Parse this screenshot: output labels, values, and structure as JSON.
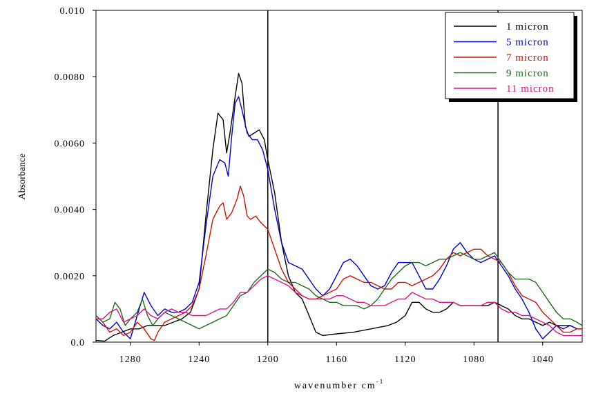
{
  "chart_data": {
    "type": "line",
    "title": "",
    "xlabel": "wavenumber cm",
    "xlabel_sup": "-1",
    "ylabel": "Absorbance",
    "xlim": [
      1300,
      1017
    ],
    "x_reversed": true,
    "ylim": [
      0,
      0.01
    ],
    "grid": false,
    "legend_position": "top-right",
    "x_ticks": [
      1280,
      1240,
      1200,
      1160,
      1120,
      1080,
      1040
    ],
    "x_tick_labels": [
      "1280",
      "1240",
      "1200",
      "1160",
      "1120",
      "1080",
      "1040"
    ],
    "y_ticks": [
      0,
      0.002,
      0.004,
      0.006,
      0.008,
      0.01
    ],
    "y_tick_labels": [
      "0.0",
      "0.0020",
      "0.0040",
      "0.0060",
      "0.0080",
      "0.010"
    ],
    "vertical_lines": [
      1200,
      1066
    ],
    "series": [
      {
        "name": "1 micron",
        "color": "#000000",
        "x": [
          1300,
          1295,
          1290,
          1285,
          1280,
          1275,
          1270,
          1265,
          1260,
          1255,
          1250,
          1245,
          1240,
          1236,
          1232,
          1229,
          1226,
          1224,
          1222,
          1219,
          1217,
          1215,
          1213,
          1211,
          1208,
          1205,
          1202,
          1200,
          1196,
          1192,
          1188,
          1184,
          1180,
          1176,
          1172,
          1168,
          1160,
          1150,
          1140,
          1130,
          1125,
          1120,
          1116,
          1112,
          1108,
          1104,
          1100,
          1096,
          1092,
          1088,
          1084,
          1080,
          1076,
          1072,
          1068,
          1064,
          1060,
          1056,
          1052,
          1048,
          1044,
          1040,
          1036,
          1032,
          1028,
          1024,
          1020,
          1017
        ],
        "values": [
          5e-05,
          3e-05,
          0.0002,
          0.0003,
          0.0004,
          0.0004,
          0.0005,
          0.0005,
          0.0005,
          0.0006,
          0.0007,
          0.0009,
          0.0016,
          0.0038,
          0.0058,
          0.0069,
          0.0067,
          0.0057,
          0.0063,
          0.0074,
          0.0081,
          0.0078,
          0.0065,
          0.0062,
          0.0063,
          0.0064,
          0.0061,
          0.0055,
          0.0045,
          0.003,
          0.002,
          0.0015,
          0.0013,
          0.0008,
          0.0003,
          0.0002,
          0.00025,
          0.0003,
          0.0004,
          0.0005,
          0.0006,
          0.0008,
          0.0012,
          0.0012,
          0.001,
          0.0009,
          0.0009,
          0.001,
          0.0012,
          0.0011,
          0.0011,
          0.0011,
          0.0011,
          0.0011,
          0.0012,
          0.0011,
          0.001,
          0.0008,
          0.0007,
          0.0007,
          0.0006,
          0.0005,
          0.0006,
          0.0005,
          0.0005,
          0.0005,
          0.0004,
          0.0004
        ]
      },
      {
        "name": "5 micron",
        "color": "#0000cc",
        "x": [
          1300,
          1296,
          1292,
          1288,
          1284,
          1280,
          1276,
          1272,
          1268,
          1264,
          1260,
          1256,
          1252,
          1248,
          1244,
          1240,
          1236,
          1232,
          1228,
          1225,
          1223,
          1221,
          1219,
          1217,
          1215,
          1212,
          1209,
          1206,
          1203,
          1200,
          1196,
          1192,
          1188,
          1184,
          1180,
          1176,
          1172,
          1168,
          1164,
          1160,
          1156,
          1152,
          1148,
          1144,
          1140,
          1136,
          1132,
          1128,
          1124,
          1120,
          1116,
          1112,
          1108,
          1104,
          1100,
          1096,
          1092,
          1088,
          1084,
          1080,
          1076,
          1072,
          1068,
          1064,
          1060,
          1056,
          1052,
          1048,
          1044,
          1040,
          1036,
          1032,
          1028,
          1024,
          1020,
          1017
        ],
        "values": [
          0.0007,
          0.0005,
          0.0004,
          0.0006,
          0.0003,
          0.0001,
          0.0008,
          0.0015,
          0.0011,
          0.0008,
          0.001,
          0.0009,
          0.0009,
          0.001,
          0.0012,
          0.0018,
          0.0035,
          0.005,
          0.0055,
          0.0054,
          0.005,
          0.0062,
          0.0072,
          0.0074,
          0.007,
          0.0063,
          0.0061,
          0.0061,
          0.0058,
          0.0052,
          0.004,
          0.003,
          0.0024,
          0.0023,
          0.0022,
          0.0019,
          0.0016,
          0.0014,
          0.0016,
          0.002,
          0.0024,
          0.0025,
          0.0023,
          0.002,
          0.0017,
          0.0016,
          0.0017,
          0.0021,
          0.0024,
          0.0024,
          0.0024,
          0.002,
          0.0016,
          0.0016,
          0.0019,
          0.0023,
          0.0028,
          0.003,
          0.0027,
          0.0025,
          0.0024,
          0.0025,
          0.0026,
          0.0023,
          0.002,
          0.0016,
          0.0013,
          0.0009,
          0.0004,
          0.0001,
          0.0003,
          0.0005,
          0.0004,
          0.0005,
          0.0004,
          0.0004
        ]
      },
      {
        "name": "7 micron",
        "color": "#cc1100",
        "x": [
          1300,
          1296,
          1292,
          1288,
          1284,
          1280,
          1276,
          1272,
          1268,
          1266,
          1264,
          1260,
          1256,
          1252,
          1248,
          1244,
          1240,
          1236,
          1232,
          1228,
          1226,
          1224,
          1221,
          1218,
          1216,
          1214,
          1212,
          1210,
          1207,
          1204,
          1200,
          1196,
          1192,
          1188,
          1184,
          1180,
          1176,
          1172,
          1168,
          1164,
          1160,
          1156,
          1152,
          1148,
          1144,
          1140,
          1136,
          1132,
          1128,
          1124,
          1120,
          1116,
          1112,
          1108,
          1104,
          1100,
          1096,
          1092,
          1088,
          1084,
          1080,
          1076,
          1072,
          1068,
          1064,
          1060,
          1056,
          1052,
          1048,
          1044,
          1040,
          1036,
          1032,
          1028,
          1024,
          1020,
          1017
        ],
        "values": [
          0.0008,
          0.0006,
          0.0003,
          0.0004,
          0.0002,
          0.0003,
          0.0006,
          0.0004,
          0.0001,
          5e-05,
          0.0003,
          0.0006,
          0.0007,
          0.0008,
          0.0009,
          0.0011,
          0.0016,
          0.0026,
          0.0037,
          0.0041,
          0.0042,
          0.0037,
          0.0039,
          0.0043,
          0.0047,
          0.0044,
          0.0038,
          0.0037,
          0.0038,
          0.0036,
          0.0034,
          0.0028,
          0.0022,
          0.0018,
          0.0016,
          0.0014,
          0.0013,
          0.0013,
          0.0014,
          0.0015,
          0.0016,
          0.0019,
          0.002,
          0.0019,
          0.0018,
          0.0018,
          0.0017,
          0.0016,
          0.0016,
          0.0018,
          0.0018,
          0.0017,
          0.0018,
          0.0019,
          0.002,
          0.0022,
          0.0025,
          0.0027,
          0.0026,
          0.0027,
          0.0028,
          0.0028,
          0.0026,
          0.0025,
          0.0024,
          0.0021,
          0.0017,
          0.0014,
          0.0013,
          0.0012,
          0.0009,
          0.0007,
          0.0005,
          0.0003,
          0.0003,
          0.0004,
          0.0004
        ]
      },
      {
        "name": "9 micron",
        "color": "#1a6b1a",
        "x": [
          1300,
          1296,
          1292,
          1289,
          1286,
          1283,
          1280,
          1276,
          1273,
          1270,
          1267,
          1264,
          1260,
          1256,
          1252,
          1248,
          1244,
          1240,
          1236,
          1232,
          1228,
          1224,
          1220,
          1216,
          1212,
          1208,
          1204,
          1200,
          1196,
          1192,
          1188,
          1184,
          1180,
          1176,
          1172,
          1168,
          1164,
          1160,
          1156,
          1152,
          1148,
          1144,
          1140,
          1136,
          1132,
          1128,
          1124,
          1120,
          1116,
          1112,
          1108,
          1104,
          1100,
          1096,
          1092,
          1088,
          1084,
          1080,
          1076,
          1072,
          1068,
          1064,
          1060,
          1056,
          1052,
          1048,
          1044,
          1040,
          1036,
          1032,
          1028,
          1024,
          1020,
          1017
        ],
        "values": [
          0.0008,
          0.0006,
          0.0007,
          0.0012,
          0.001,
          0.0005,
          0.0007,
          0.0009,
          0.0013,
          0.0008,
          0.0005,
          0.0007,
          0.0009,
          0.0008,
          0.0007,
          0.0006,
          0.0005,
          0.0004,
          0.0005,
          0.0006,
          0.0007,
          0.0008,
          0.0011,
          0.0014,
          0.0015,
          0.0018,
          0.002,
          0.0022,
          0.0021,
          0.0019,
          0.0018,
          0.0018,
          0.0017,
          0.0016,
          0.0014,
          0.0013,
          0.0012,
          0.0012,
          0.0011,
          0.0011,
          0.0011,
          0.001,
          0.0011,
          0.0013,
          0.0016,
          0.0019,
          0.0021,
          0.0023,
          0.0024,
          0.0024,
          0.0023,
          0.0024,
          0.0025,
          0.0025,
          0.0026,
          0.0027,
          0.0026,
          0.0025,
          0.0025,
          0.0026,
          0.0027,
          0.0024,
          0.0021,
          0.0019,
          0.0019,
          0.0019,
          0.0018,
          0.0015,
          0.0012,
          0.0009,
          0.0007,
          0.0007,
          0.0006,
          0.0005
        ]
      },
      {
        "name": "11 micron",
        "color": "#dd1188",
        "x": [
          1300,
          1296,
          1292,
          1288,
          1284,
          1280,
          1276,
          1272,
          1268,
          1264,
          1260,
          1256,
          1252,
          1248,
          1244,
          1240,
          1236,
          1232,
          1228,
          1224,
          1220,
          1216,
          1212,
          1208,
          1204,
          1200,
          1196,
          1192,
          1188,
          1184,
          1180,
          1176,
          1172,
          1168,
          1164,
          1160,
          1156,
          1152,
          1148,
          1144,
          1140,
          1136,
          1132,
          1128,
          1124,
          1120,
          1116,
          1112,
          1108,
          1104,
          1100,
          1096,
          1092,
          1088,
          1084,
          1080,
          1076,
          1072,
          1068,
          1064,
          1060,
          1056,
          1052,
          1048,
          1044,
          1040,
          1036,
          1032,
          1028,
          1024,
          1020,
          1017
        ],
        "values": [
          0.0007,
          0.0007,
          0.0009,
          0.001,
          0.0006,
          0.0007,
          0.0008,
          0.001,
          0.0008,
          0.0007,
          0.0009,
          0.001,
          0.0009,
          0.0009,
          0.0008,
          0.0008,
          0.0008,
          0.0009,
          0.001,
          0.001,
          0.0012,
          0.0015,
          0.0015,
          0.0017,
          0.0019,
          0.002,
          0.0019,
          0.0018,
          0.0017,
          0.0015,
          0.0014,
          0.0013,
          0.0013,
          0.0013,
          0.0013,
          0.0014,
          0.0014,
          0.0013,
          0.0012,
          0.0012,
          0.0011,
          0.0011,
          0.0011,
          0.0012,
          0.0013,
          0.0013,
          0.0015,
          0.0014,
          0.0013,
          0.0013,
          0.0012,
          0.0012,
          0.0012,
          0.0011,
          0.0011,
          0.0011,
          0.0011,
          0.0012,
          0.0012,
          0.001,
          0.0009,
          0.0009,
          0.0008,
          0.0008,
          0.0007,
          0.0006,
          0.0005,
          0.0003,
          0.0002,
          0.0002,
          0.0002,
          0.0002
        ]
      }
    ]
  }
}
